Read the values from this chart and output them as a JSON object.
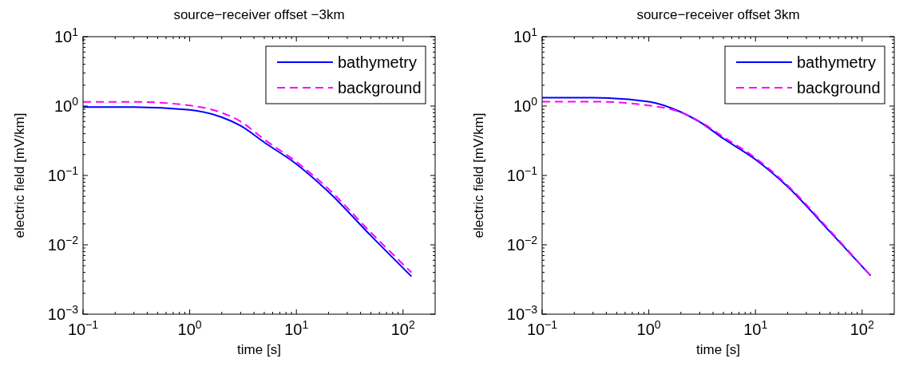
{
  "chart_data": [
    {
      "type": "line",
      "title": "source−receiver offset −3km",
      "xlabel": "time [s]",
      "ylabel": "electric field [mV/km]",
      "log": "xy",
      "grid": false,
      "legend": "top right",
      "xlim": [
        0.1,
        200
      ],
      "xticks": [
        {
          "value": 0.1,
          "label": "10$^{−1}$"
        },
        {
          "value": 1,
          "label": "10$^{0}$"
        },
        {
          "value": 10,
          "label": "10$^{1}$"
        },
        {
          "value": 100,
          "label": "10$^{2}$"
        }
      ],
      "ylim": [
        0.001,
        10
      ],
      "yticks": [
        {
          "value": 0.001,
          "label": "10$^{−3}$"
        },
        {
          "value": 0.01,
          "label": "10$^{−2}$"
        },
        {
          "value": 0.1,
          "label": "10$^{−1}$"
        },
        {
          "value": 1,
          "label": "10$^{0}$"
        },
        {
          "value": 10,
          "label": "10$^{1}$"
        }
      ],
      "series": [
        {
          "name": "bathymetry",
          "color": "#0000ff",
          "line_style": "solid",
          "x": [
            0.1,
            0.3,
            1,
            2,
            3,
            5,
            10,
            20,
            50,
            120
          ],
          "values": [
            0.97,
            0.97,
            0.88,
            0.69,
            0.52,
            0.3,
            0.146,
            0.058,
            0.0135,
            0.0035
          ]
        },
        {
          "name": "background",
          "color": "#ff00ff",
          "line_style": "dashed",
          "x": [
            0.1,
            0.3,
            1,
            2,
            3,
            5,
            10,
            20,
            50,
            120
          ],
          "values": [
            1.15,
            1.15,
            1.02,
            0.8,
            0.6,
            0.33,
            0.157,
            0.064,
            0.015,
            0.004
          ]
        }
      ]
    },
    {
      "type": "line",
      "title": "source−receiver offset 3km",
      "xlabel": "time [s]",
      "ylabel": "electric field [mV/km]",
      "log": "xy",
      "grid": false,
      "legend": "top right",
      "xlim": [
        0.1,
        200
      ],
      "xticks": [
        {
          "value": 0.1,
          "label": "10$^{−1}$"
        },
        {
          "value": 1,
          "label": "10$^{0}$"
        },
        {
          "value": 10,
          "label": "10$^{1}$"
        },
        {
          "value": 100,
          "label": "10$^{2}$"
        }
      ],
      "ylim": [
        0.001,
        10
      ],
      "yticks": [
        {
          "value": 0.001,
          "label": "10$^{−3}$"
        },
        {
          "value": 0.01,
          "label": "10$^{−2}$"
        },
        {
          "value": 0.1,
          "label": "10$^{−1}$"
        },
        {
          "value": 1,
          "label": "10$^{0}$"
        },
        {
          "value": 10,
          "label": "10$^{1}$"
        }
      ],
      "series": [
        {
          "name": "bathymetry",
          "color": "#0000ff",
          "line_style": "solid",
          "x": [
            0.1,
            0.3,
            1,
            2,
            3,
            5,
            10,
            20,
            50,
            120
          ],
          "values": [
            1.32,
            1.32,
            1.16,
            0.82,
            0.59,
            0.34,
            0.17,
            0.069,
            0.0154,
            0.0036
          ]
        },
        {
          "name": "background",
          "color": "#ff00ff",
          "line_style": "dashed",
          "x": [
            0.1,
            0.3,
            1,
            2,
            3,
            5,
            10,
            20,
            50,
            120
          ],
          "values": [
            1.16,
            1.16,
            1.02,
            0.81,
            0.6,
            0.36,
            0.178,
            0.072,
            0.016,
            0.0036
          ]
        }
      ]
    }
  ]
}
